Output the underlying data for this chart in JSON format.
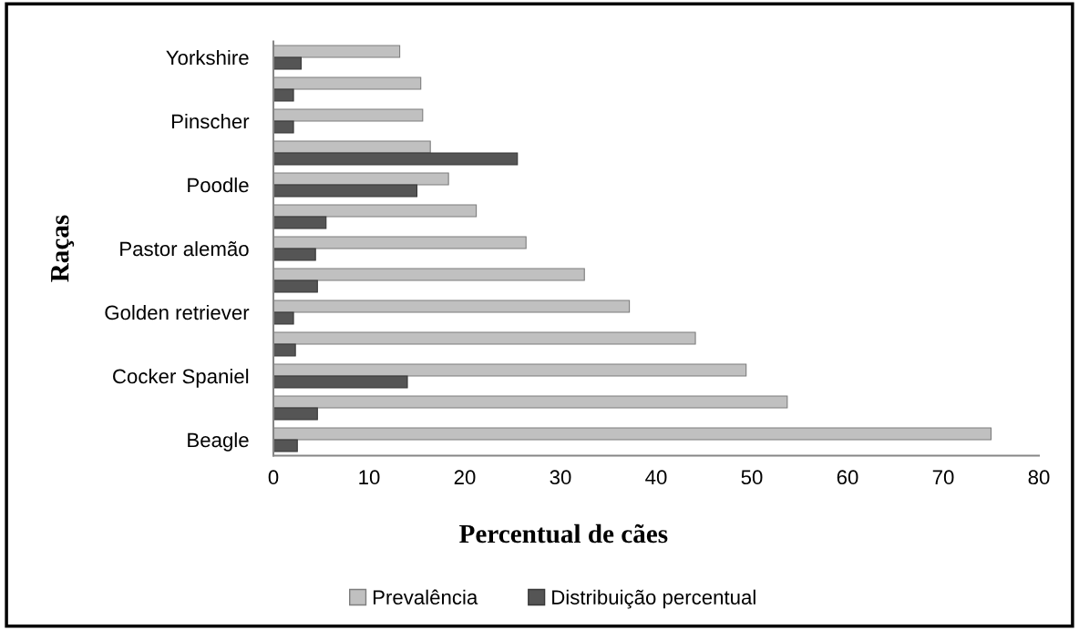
{
  "chart_data": {
    "type": "bar",
    "orientation": "horizontal",
    "xlabel": "Percentual de cães",
    "ylabel": "Raças",
    "categories": [
      "Yorkshire",
      null,
      "Pinscher",
      null,
      "Poodle",
      null,
      "Pastor alemão",
      null,
      "Golden retriever",
      null,
      "Cocker Spaniel",
      null,
      "Beagle"
    ],
    "series": [
      {
        "name": "Prevalência",
        "color": "#c0c0c0",
        "values": [
          13.2,
          15.4,
          15.6,
          16.4,
          18.3,
          21.2,
          26.4,
          32.5,
          37.2,
          44.1,
          49.4,
          53.7,
          75.0
        ]
      },
      {
        "name": "Distribuição percentual",
        "color": "#555555",
        "values": [
          2.9,
          2.1,
          2.1,
          25.5,
          15.0,
          5.5,
          4.4,
          4.6,
          2.1,
          2.3,
          14.0,
          4.6,
          2.5
        ]
      }
    ],
    "xlim": [
      0,
      80
    ],
    "xticks": [
      0,
      10,
      20,
      30,
      40,
      50,
      60,
      70,
      80
    ],
    "grid": false,
    "legend": "bottom"
  }
}
